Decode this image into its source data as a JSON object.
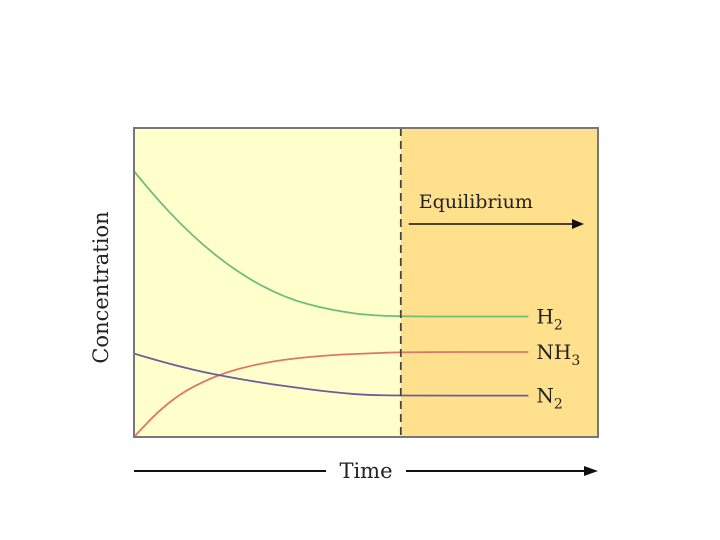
{
  "chart_data": {
    "type": "line",
    "title": "",
    "xlabel": "Time",
    "ylabel": "Concentration",
    "xlim": [
      0,
      10
    ],
    "ylim": [
      0,
      10
    ],
    "equilibrium_start": 5.75,
    "region_label": "Equilibrium",
    "series": [
      {
        "name": "H2",
        "label_main": "H",
        "label_sub": "2",
        "color": "#6cbf7a",
        "x": [
          0,
          0.5,
          1,
          1.5,
          2,
          2.5,
          3,
          3.5,
          4,
          4.5,
          5,
          5.75,
          8.5
        ],
        "y": [
          8.6,
          7.7,
          6.9,
          6.2,
          5.6,
          5.1,
          4.7,
          4.4,
          4.2,
          4.05,
          3.95,
          3.9,
          3.9
        ]
      },
      {
        "name": "NH3",
        "label_main": "NH",
        "label_sub": "3",
        "color": "#e0766a",
        "x": [
          0,
          0.5,
          1,
          1.5,
          2,
          2.5,
          3,
          3.5,
          4,
          4.5,
          5,
          5.75,
          8.5
        ],
        "y": [
          0.0,
          0.8,
          1.4,
          1.8,
          2.1,
          2.3,
          2.45,
          2.55,
          2.62,
          2.67,
          2.7,
          2.75,
          2.75
        ]
      },
      {
        "name": "N2",
        "label_main": "N",
        "label_sub": "2",
        "color": "#6a5f9a",
        "x": [
          0,
          0.5,
          1,
          1.5,
          2,
          2.5,
          3,
          3.5,
          4,
          4.5,
          5,
          5.75,
          8.5
        ],
        "y": [
          2.7,
          2.48,
          2.28,
          2.1,
          1.95,
          1.82,
          1.7,
          1.6,
          1.5,
          1.42,
          1.36,
          1.34,
          1.34
        ]
      }
    ],
    "colors": {
      "pre_equilibrium_bg": "#ffffcc",
      "equilibrium_bg": "#ffe08c",
      "frame": "#777777",
      "divider": "#444444",
      "arrow": "#111111"
    }
  }
}
